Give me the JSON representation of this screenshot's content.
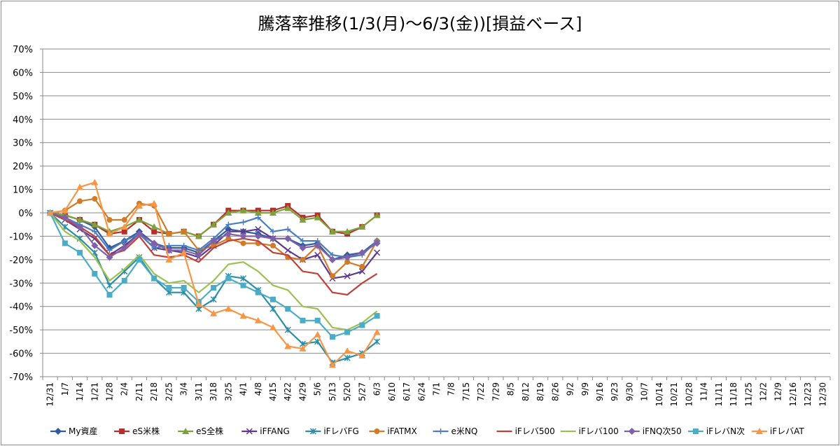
{
  "chart_data": {
    "type": "line",
    "title": "騰落率推移(1/3(月)～6/3(金))[損益ベース]",
    "xlabel": "",
    "ylabel": "",
    "ylim": [
      -70,
      70
    ],
    "y_ticks": [
      "70%",
      "60%",
      "50%",
      "40%",
      "30%",
      "20%",
      "10%",
      "0%",
      "-10%",
      "-20%",
      "-30%",
      "-40%",
      "-50%",
      "-60%",
      "-70%"
    ],
    "x_ticks": [
      "12/31",
      "1/7",
      "1/14",
      "1/21",
      "1/28",
      "2/4",
      "2/11",
      "2/18",
      "2/25",
      "3/4",
      "3/11",
      "3/18",
      "3/25",
      "4/1",
      "4/8",
      "4/15",
      "4/22",
      "4/29",
      "5/6",
      "5/13",
      "5/20",
      "5/27",
      "6/3",
      "6/10",
      "6/17",
      "6/24",
      "7/1",
      "7/8",
      "7/15",
      "7/22",
      "7/29",
      "8/5",
      "8/12",
      "8/19",
      "8/26",
      "9/2",
      "9/9",
      "9/16",
      "9/23",
      "9/30",
      "10/7",
      "10/14",
      "10/21",
      "10/28",
      "11/4",
      "11/11",
      "11/18",
      "11/25",
      "12/2",
      "12/9",
      "12/16",
      "12/23",
      "12/30"
    ],
    "grid": "horizontal",
    "legend_position": "bottom",
    "series": [
      {
        "name": "My資産",
        "color": "#2e5c9e",
        "marker": "diamond",
        "values": [
          0,
          -1,
          -3,
          -6,
          -15,
          -12,
          -8,
          -13,
          -15,
          -15,
          -17,
          -12,
          -7,
          -8,
          -9,
          -11,
          -11,
          -14,
          -13,
          -20,
          -18,
          -17,
          -12
        ]
      },
      {
        "name": "eS米株",
        "color": "#b5302c",
        "marker": "square",
        "values": [
          0,
          -1,
          -3,
          -5,
          -9,
          -8,
          -3,
          -8,
          -9,
          -8,
          -10,
          -5,
          1,
          1,
          1,
          1,
          3,
          -2,
          -1,
          -8,
          -9,
          -6,
          -1
        ]
      },
      {
        "name": "eS全株",
        "color": "#7da23a",
        "marker": "triangle",
        "values": [
          0,
          -1,
          -3,
          -5,
          -8,
          -6,
          -3,
          -6,
          -9,
          -8,
          -10,
          -5,
          0,
          1,
          0,
          0,
          2,
          -3,
          -2,
          -8,
          -8,
          -6,
          -1
        ]
      },
      {
        "name": "iFFANG",
        "color": "#5e3a8c",
        "marker": "x",
        "values": [
          0,
          -3,
          -7,
          -11,
          -18,
          -14,
          -9,
          -15,
          -16,
          -17,
          -19,
          -14,
          -8,
          -8,
          -7,
          -11,
          -16,
          -20,
          -18,
          -28,
          -27,
          -25,
          -17
        ]
      },
      {
        "name": "iFレバFG",
        "color": "#2b8ea8",
        "marker": "asterisk",
        "values": [
          0,
          -6,
          -11,
          -17,
          -31,
          -25,
          -19,
          -28,
          -34,
          -34,
          -41,
          -37,
          -27,
          -28,
          -33,
          -41,
          -50,
          -56,
          -55,
          -64,
          -62,
          -60,
          -55
        ]
      },
      {
        "name": "iFATMX",
        "color": "#d17a28",
        "marker": "circle",
        "values": [
          0,
          1,
          5,
          6,
          -3,
          -3,
          4,
          3,
          -9,
          -8,
          -16,
          -14,
          -11,
          -13,
          -13,
          -14,
          -19,
          -20,
          -14,
          -27,
          -21,
          -23,
          -12
        ]
      },
      {
        "name": "e米NQ",
        "color": "#4a7ebf",
        "marker": "plus",
        "values": [
          0,
          -2,
          -5,
          -8,
          -16,
          -12,
          -9,
          -15,
          -14,
          -14,
          -16,
          -11,
          -5,
          -4,
          -2,
          -8,
          -7,
          -12,
          -12,
          -18,
          -19,
          -18,
          -12
        ]
      },
      {
        "name": "iFレバ500",
        "color": "#c0403a",
        "marker": "none",
        "values": [
          0,
          -3,
          -6,
          -10,
          -18,
          -16,
          -10,
          -18,
          -19,
          -18,
          -21,
          -15,
          -12,
          -11,
          -12,
          -17,
          -18,
          -25,
          -26,
          -34,
          -35,
          -30,
          -26
        ]
      },
      {
        "name": "iFレバ100",
        "color": "#9bc152",
        "marker": "none",
        "values": [
          0,
          -8,
          -12,
          -19,
          -29,
          -24,
          -18,
          -26,
          -30,
          -29,
          -34,
          -29,
          -22,
          -21,
          -25,
          -31,
          -33,
          -40,
          -41,
          -49,
          -50,
          -47,
          -42
        ]
      },
      {
        "name": "iFNQ次50",
        "color": "#8060a8",
        "marker": "diamond",
        "values": [
          0,
          -2,
          -6,
          -14,
          -19,
          -15,
          -9,
          -13,
          -16,
          -16,
          -18,
          -12,
          -9,
          -10,
          -10,
          -11,
          -11,
          -15,
          -14,
          -20,
          -19,
          -17,
          -13
        ]
      },
      {
        "name": "iFレバN次",
        "color": "#4bacc6",
        "marker": "square",
        "values": [
          0,
          -13,
          -17,
          -26,
          -35,
          -29,
          -20,
          -28,
          -32,
          -32,
          -38,
          -32,
          -28,
          -31,
          -34,
          -37,
          -41,
          -46,
          -46,
          -53,
          -51,
          -48,
          -44
        ]
      },
      {
        "name": "iFレバAT",
        "color": "#f79646",
        "marker": "triangle",
        "values": [
          0,
          1,
          11,
          13,
          -9,
          -6,
          3,
          4,
          -20,
          -17,
          -39,
          -43,
          -41,
          -44,
          -46,
          -49,
          -57,
          -58,
          -52,
          -65,
          -59,
          -61,
          -51
        ]
      }
    ]
  }
}
